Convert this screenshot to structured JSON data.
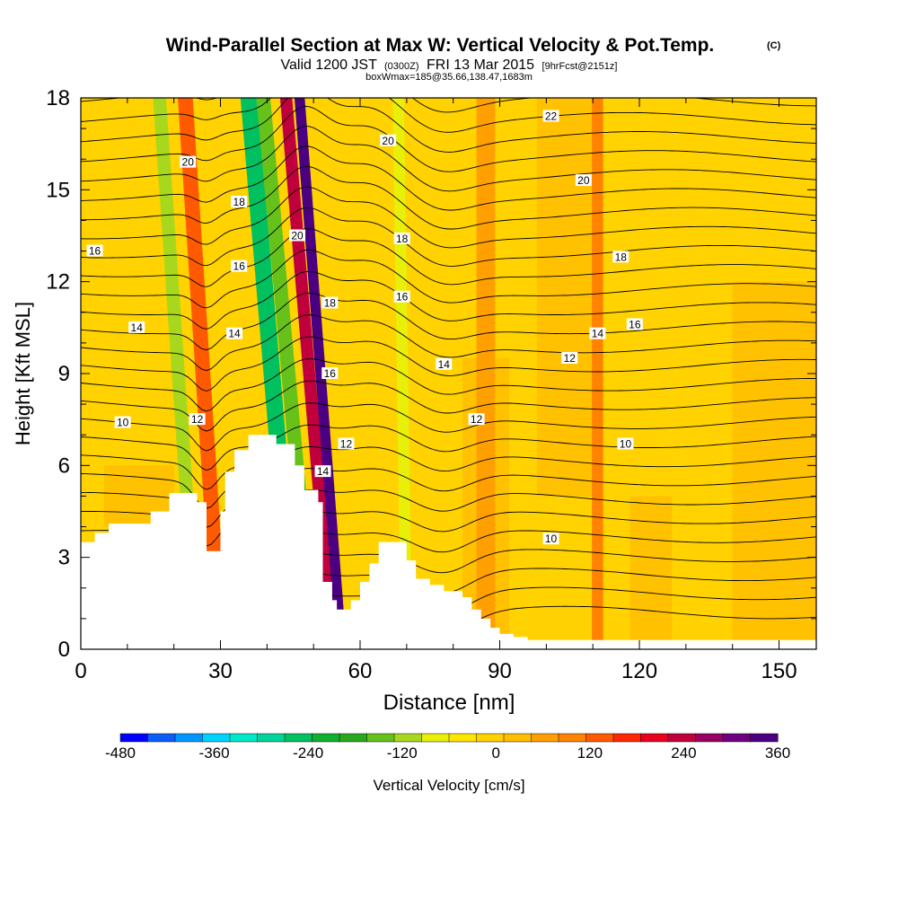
{
  "chart_data": {
    "type": "heatmap",
    "title": "Wind-Parallel Section at Max W: Vertical Velocity & Pot.Temp.",
    "title_mark": "(C)",
    "subtitle": {
      "valid": "Valid 1200 JST",
      "utc": "(0300Z)",
      "date": "FRI 13 Mar 2015",
      "forecast": "[9hrFcst@2151z]"
    },
    "box_info": "boxWmax=185@35.66,138.47,1683m",
    "xlabel": "Distance [nm]",
    "ylabel": "Height [Kft MSL]",
    "xlim": [
      0,
      158
    ],
    "ylim": [
      0,
      18
    ],
    "x_ticks": [
      "0",
      "30",
      "60",
      "90",
      "120",
      "150"
    ],
    "x_tick_values": [
      0,
      30,
      60,
      90,
      120,
      150
    ],
    "y_ticks": [
      "0",
      "3",
      "6",
      "9",
      "12",
      "15",
      "18"
    ],
    "y_tick_values": [
      0,
      3,
      6,
      9,
      12,
      15,
      18
    ],
    "colorbar": {
      "label": "Vertical Velocity [cm/s]",
      "min": -480,
      "max": 360,
      "tick_labels": [
        "-480",
        "-360",
        "-240",
        "-120",
        "0",
        "120",
        "240",
        "360"
      ],
      "tick_values": [
        -480,
        -360,
        -240,
        -120,
        0,
        120,
        240,
        360
      ],
      "colors": [
        "#0000ff",
        "#0b5ef5",
        "#0096ff",
        "#00d2ff",
        "#00e8c8",
        "#00d49a",
        "#00c060",
        "#10b030",
        "#2aa81c",
        "#66c21a",
        "#a8d81e",
        "#e8f00a",
        "#ffe600",
        "#ffd200",
        "#ffbe00",
        "#ffa000",
        "#ff8200",
        "#ff5a00",
        "#ff2800",
        "#e8001e",
        "#c0003c",
        "#980066",
        "#6e0080",
        "#4b0082"
      ]
    },
    "velocity_bands": [
      {
        "x_center": 25,
        "half_width": 1.4,
        "tilt": 0.45,
        "value": -120
      },
      {
        "x_center": 30,
        "half_width": 1.6,
        "tilt": 0.42,
        "value": 120
      },
      {
        "x_center": 46,
        "half_width": 1.8,
        "tilt": 0.55,
        "value": -240
      },
      {
        "x_center": 50,
        "half_width": 1.5,
        "tilt": 0.6,
        "value": -150
      },
      {
        "x_center": 54,
        "half_width": 1.3,
        "tilt": 0.55,
        "value": 240
      },
      {
        "x_center": 56,
        "half_width": 1.1,
        "tilt": 0.5,
        "value": 330
      },
      {
        "x_center": 70,
        "half_width": 1.2,
        "tilt": 0.1,
        "value": -90
      },
      {
        "x_center": 111,
        "half_width": 1.2,
        "tilt": 0.0,
        "value": 90
      },
      {
        "x_center": 87,
        "half_width": 2.0,
        "tilt": 0.0,
        "value": 60
      }
    ],
    "terrain": {
      "x": [
        0,
        3,
        3,
        6,
        6,
        9,
        9,
        15,
        15,
        18,
        18,
        19,
        19,
        21,
        21,
        24,
        24,
        25,
        25,
        26,
        26,
        27,
        27,
        28,
        28,
        30,
        30,
        31,
        31,
        33,
        33,
        36,
        36,
        37,
        37,
        39,
        39,
        40,
        40,
        42,
        42,
        43,
        43,
        45,
        45,
        46,
        46,
        48,
        48,
        49,
        49,
        51,
        51,
        52,
        52,
        54,
        54,
        55,
        55,
        57,
        57,
        58,
        58,
        60,
        60,
        62,
        62,
        64,
        64,
        66,
        66,
        68,
        68,
        70,
        70,
        72,
        72,
        75,
        75,
        78,
        78,
        80,
        80,
        82,
        82,
        84,
        84,
        86,
        86,
        88,
        88,
        90,
        90,
        93,
        93,
        96,
        96,
        98,
        98,
        100,
        100,
        102,
        102,
        104,
        104,
        106,
        106,
        110,
        110,
        115,
        115,
        120,
        120,
        125,
        125,
        130,
        130,
        135,
        135,
        140,
        140,
        145,
        145,
        150,
        150,
        158
      ],
      "y": [
        3.5,
        3.5,
        3.8,
        3.8,
        4.1,
        4.1,
        4.1,
        4.1,
        4.5,
        4.5,
        4.5,
        4.5,
        5.1,
        5.1,
        5.1,
        5.1,
        5.1,
        5.1,
        4.8,
        4.8,
        4.8,
        4.8,
        3.2,
        3.2,
        3.2,
        3.2,
        4.5,
        4.5,
        5.8,
        5.8,
        6.5,
        6.5,
        7.0,
        7.0,
        7.0,
        7.0,
        7.0,
        7.0,
        7.0,
        7.0,
        6.7,
        6.7,
        6.7,
        6.7,
        6.7,
        6.7,
        6.0,
        6.0,
        5.2,
        5.2,
        5.2,
        5.2,
        4.8,
        4.8,
        2.2,
        2.2,
        1.6,
        1.6,
        1.3,
        1.3,
        1.3,
        1.3,
        1.6,
        1.6,
        2.2,
        2.2,
        2.8,
        2.8,
        3.5,
        3.5,
        3.5,
        3.5,
        3.5,
        3.5,
        2.9,
        2.9,
        2.3,
        2.3,
        2.1,
        2.1,
        1.9,
        1.9,
        1.9,
        1.9,
        1.7,
        1.7,
        1.3,
        1.3,
        1.0,
        1.0,
        0.7,
        0.7,
        0.5,
        0.5,
        0.4,
        0.4,
        0.3,
        0.3,
        0.3,
        0.3,
        0.3,
        0.3,
        0.3,
        0.3,
        0.3,
        0.3,
        0.3,
        0.3,
        0.3,
        0.3,
        0.3,
        0.3,
        0.3,
        0.3,
        0.3,
        0.3,
        0.3,
        0.3,
        0.3,
        0.3,
        0.3,
        0.3,
        0.3,
        0.3,
        0.3,
        0.3
      ]
    },
    "contour_labels": [
      {
        "text": "22",
        "x": 101,
        "y": 17.4
      },
      {
        "text": "20",
        "x": 66,
        "y": 16.6
      },
      {
        "text": "20",
        "x": 108,
        "y": 15.3
      },
      {
        "text": "20",
        "x": 23,
        "y": 15.9
      },
      {
        "text": "18",
        "x": 34,
        "y": 14.6
      },
      {
        "text": "20",
        "x": 46.5,
        "y": 13.5
      },
      {
        "text": "18",
        "x": 69,
        "y": 13.4
      },
      {
        "text": "16",
        "x": 3,
        "y": 13.0
      },
      {
        "text": "18",
        "x": 116,
        "y": 12.8
      },
      {
        "text": "16",
        "x": 34,
        "y": 12.5
      },
      {
        "text": "16",
        "x": 69,
        "y": 11.5
      },
      {
        "text": "18",
        "x": 53.5,
        "y": 11.3
      },
      {
        "text": "16",
        "x": 119,
        "y": 10.6
      },
      {
        "text": "14",
        "x": 12,
        "y": 10.5
      },
      {
        "text": "14",
        "x": 33,
        "y": 10.3
      },
      {
        "text": "14",
        "x": 111,
        "y": 10.3
      },
      {
        "text": "12",
        "x": 105,
        "y": 9.5
      },
      {
        "text": "14",
        "x": 78,
        "y": 9.3
      },
      {
        "text": "16",
        "x": 53.5,
        "y": 9.0
      },
      {
        "text": "12",
        "x": 25,
        "y": 7.5
      },
      {
        "text": "10",
        "x": 9,
        "y": 7.4
      },
      {
        "text": "12",
        "x": 85,
        "y": 7.5
      },
      {
        "text": "12",
        "x": 57,
        "y": 6.7
      },
      {
        "text": "10",
        "x": 117,
        "y": 6.7
      },
      {
        "text": "14",
        "x": 52,
        "y": 5.8
      },
      {
        "text": "10",
        "x": 101,
        "y": 3.6
      }
    ],
    "grid": false,
    "legend": "bottom"
  }
}
